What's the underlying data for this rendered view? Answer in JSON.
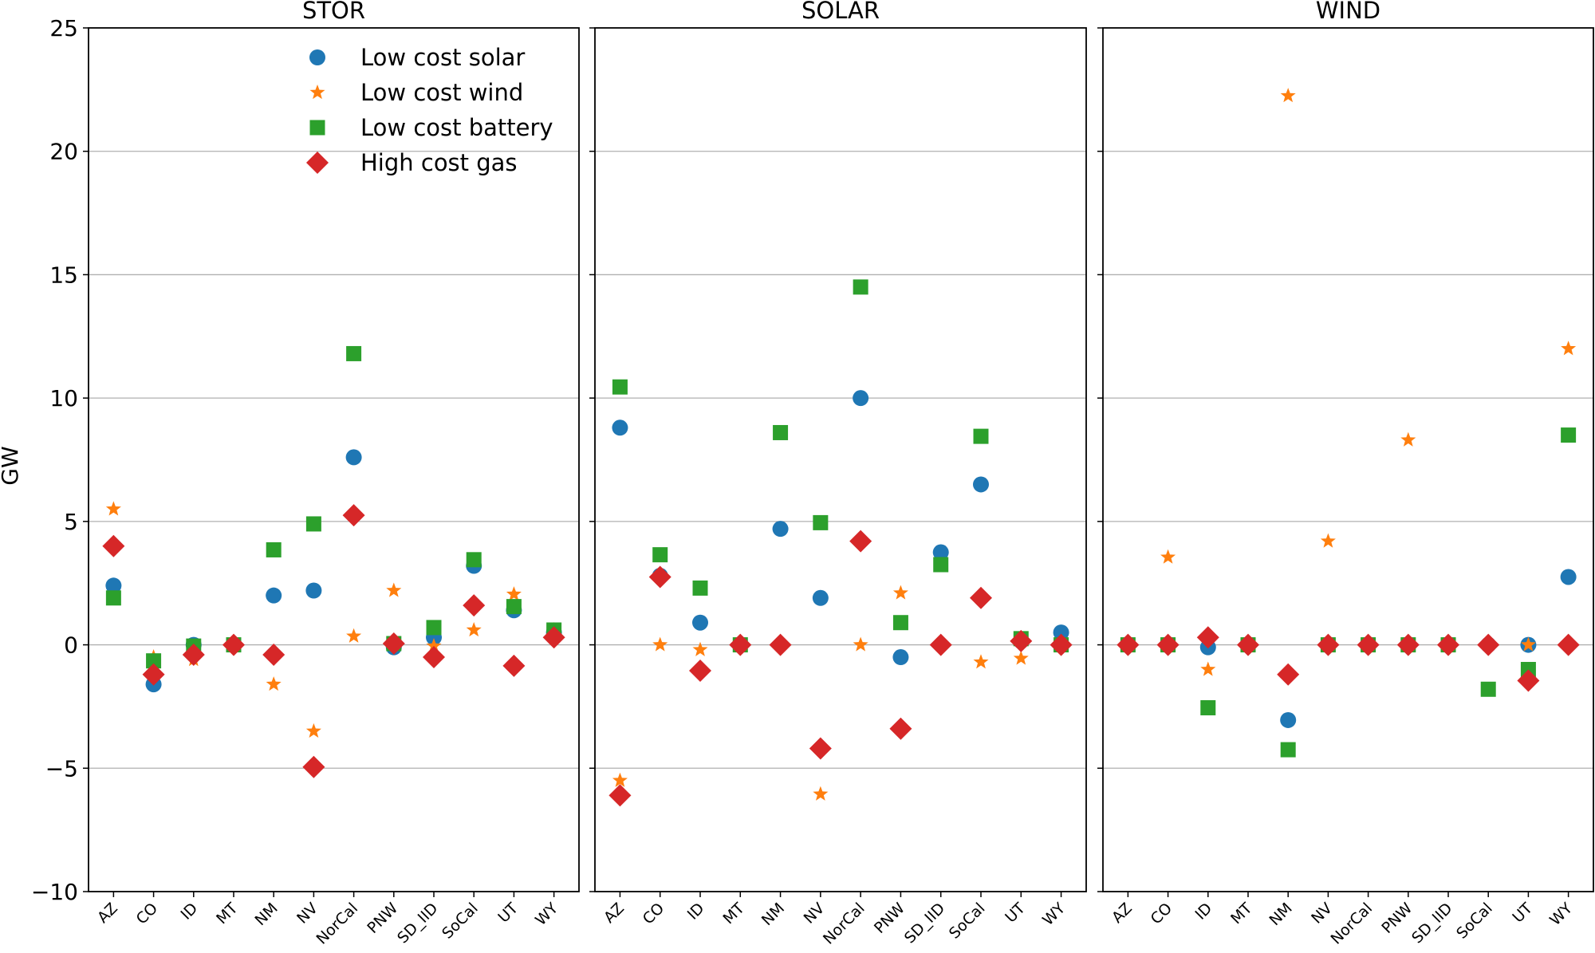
{
  "chart_data": {
    "type": "scatter",
    "ylabel": "GW",
    "ylim": [
      -10,
      25
    ],
    "yticks": [
      -10,
      -5,
      0,
      5,
      10,
      15,
      20,
      25
    ],
    "yticklabels": [
      "−10",
      "−5",
      "0",
      "5",
      "10",
      "15",
      "20",
      "25"
    ],
    "grid": "horizontal",
    "legend_location": "top-right of first panel",
    "categories": [
      "AZ",
      "CO",
      "ID",
      "MT",
      "NM",
      "NV",
      "NorCal",
      "PNW",
      "SD_IID",
      "SoCal",
      "UT",
      "WY"
    ],
    "series_styles": [
      {
        "name": "Low cost solar",
        "marker": "circle",
        "color": "#1f77b4"
      },
      {
        "name": "Low cost wind",
        "marker": "star",
        "color": "#ff7f0e"
      },
      {
        "name": "Low cost battery",
        "marker": "square",
        "color": "#2ca02c"
      },
      {
        "name": "High cost gas",
        "marker": "diamond",
        "color": "#d62728"
      }
    ],
    "panels": [
      {
        "title": "STOR",
        "series": [
          {
            "name": "Low cost solar",
            "values": [
              2.4,
              -1.6,
              0.0,
              0.0,
              2.0,
              2.2,
              7.6,
              -0.1,
              0.3,
              3.2,
              1.4,
              0.5
            ]
          },
          {
            "name": "Low cost wind",
            "values": [
              5.5,
              -0.5,
              -0.6,
              0.0,
              -1.6,
              -3.5,
              0.35,
              2.2,
              -0.05,
              0.6,
              2.05,
              0.6
            ]
          },
          {
            "name": "Low cost battery",
            "values": [
              1.9,
              -0.65,
              -0.05,
              0.0,
              3.85,
              4.9,
              11.8,
              0.05,
              0.7,
              3.45,
              1.55,
              0.6
            ]
          },
          {
            "name": "High cost gas",
            "values": [
              4.0,
              -1.2,
              -0.4,
              0.0,
              -0.4,
              -4.95,
              5.25,
              0.05,
              -0.5,
              1.6,
              -0.85,
              0.3
            ]
          }
        ]
      },
      {
        "title": "SOLAR",
        "series": [
          {
            "name": "Low cost solar",
            "values": [
              8.8,
              2.8,
              0.9,
              0.0,
              4.7,
              1.9,
              10.0,
              -0.5,
              3.75,
              6.5,
              0.15,
              0.5
            ]
          },
          {
            "name": "Low cost wind",
            "values": [
              -5.5,
              0.0,
              -0.2,
              0.0,
              0.0,
              -6.05,
              0.0,
              2.1,
              0.0,
              -0.7,
              -0.55,
              0.0
            ]
          },
          {
            "name": "Low cost battery",
            "values": [
              10.45,
              3.65,
              2.3,
              0.0,
              8.6,
              4.95,
              14.5,
              0.9,
              3.25,
              8.45,
              0.25,
              0.0
            ]
          },
          {
            "name": "High cost gas",
            "values": [
              -6.1,
              2.75,
              -1.05,
              0.0,
              0.0,
              -4.2,
              4.2,
              -3.4,
              0.0,
              1.9,
              0.15,
              0.0
            ]
          }
        ]
      },
      {
        "title": "WIND",
        "series": [
          {
            "name": "Low cost solar",
            "values": [
              0.0,
              0.0,
              -0.1,
              0.0,
              -3.05,
              0.0,
              0.0,
              0.0,
              0.0,
              0.0,
              0.0,
              2.75
            ]
          },
          {
            "name": "Low cost wind",
            "values": [
              0.0,
              3.55,
              -1.0,
              0.0,
              22.25,
              4.2,
              0.0,
              8.3,
              0.0,
              0.0,
              0.0,
              12.0
            ]
          },
          {
            "name": "Low cost battery",
            "values": [
              0.0,
              0.0,
              -2.55,
              0.0,
              -4.25,
              0.0,
              0.0,
              0.0,
              0.0,
              -1.8,
              -1.0,
              8.5
            ]
          },
          {
            "name": "High cost gas",
            "values": [
              0.0,
              0.0,
              0.3,
              0.0,
              -1.2,
              0.0,
              0.0,
              0.0,
              0.0,
              0.0,
              -1.45,
              0.0
            ]
          }
        ]
      }
    ]
  }
}
